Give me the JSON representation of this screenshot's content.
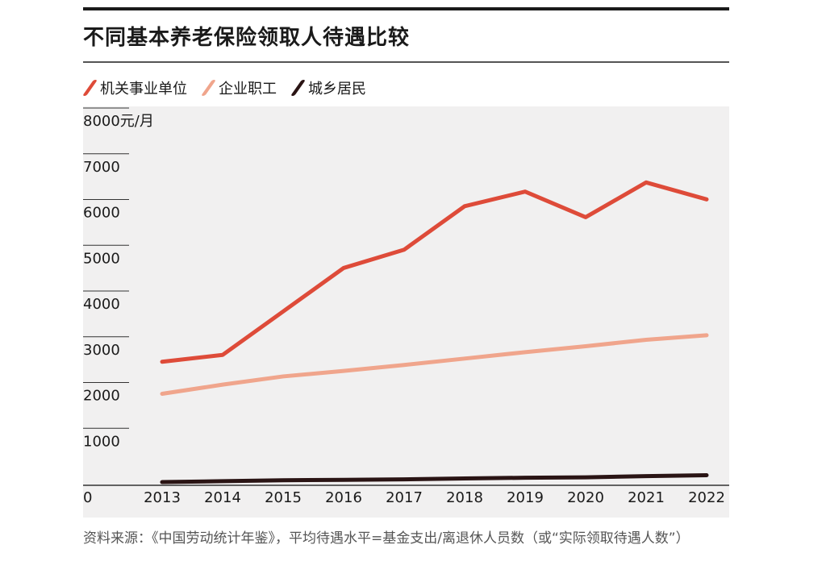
{
  "title": "不同基本养老保险领取人待遇比较",
  "source": "资料来源：《中国劳动统计年鉴》，平均待遇水平=基金支出/离退休人员数（或“实际领取待遇人数”）",
  "chart_data": {
    "type": "line",
    "title": "不同基本养老保险领取人待遇比较",
    "x": [
      "2013",
      "2014",
      "2015",
      "2016",
      "2017",
      "2018",
      "2019",
      "2020",
      "2021",
      "2022"
    ],
    "ylim": [
      0,
      8000
    ],
    "yticks": [
      "0",
      "1000",
      "2000",
      "3000",
      "4000",
      "5000",
      "6000",
      "7000",
      "8000元/月"
    ],
    "ylabel": "",
    "xlabel": "",
    "unit": "元/月",
    "grid": false,
    "legend_position": "top-left",
    "series": [
      {
        "name": "机关事业单位",
        "color": "#de4b39",
        "values": [
          2700,
          2850,
          3800,
          4750,
          5150,
          6100,
          6420,
          5860,
          6620,
          6250
        ]
      },
      {
        "name": "企业职工",
        "color": "#f0a58c",
        "values": [
          2000,
          2200,
          2380,
          2500,
          2630,
          2770,
          2910,
          3040,
          3180,
          3280
        ]
      },
      {
        "name": "城乡居民",
        "color": "#2a1414",
        "values": [
          70,
          90,
          110,
          120,
          130,
          150,
          165,
          175,
          200,
          220
        ]
      }
    ]
  }
}
